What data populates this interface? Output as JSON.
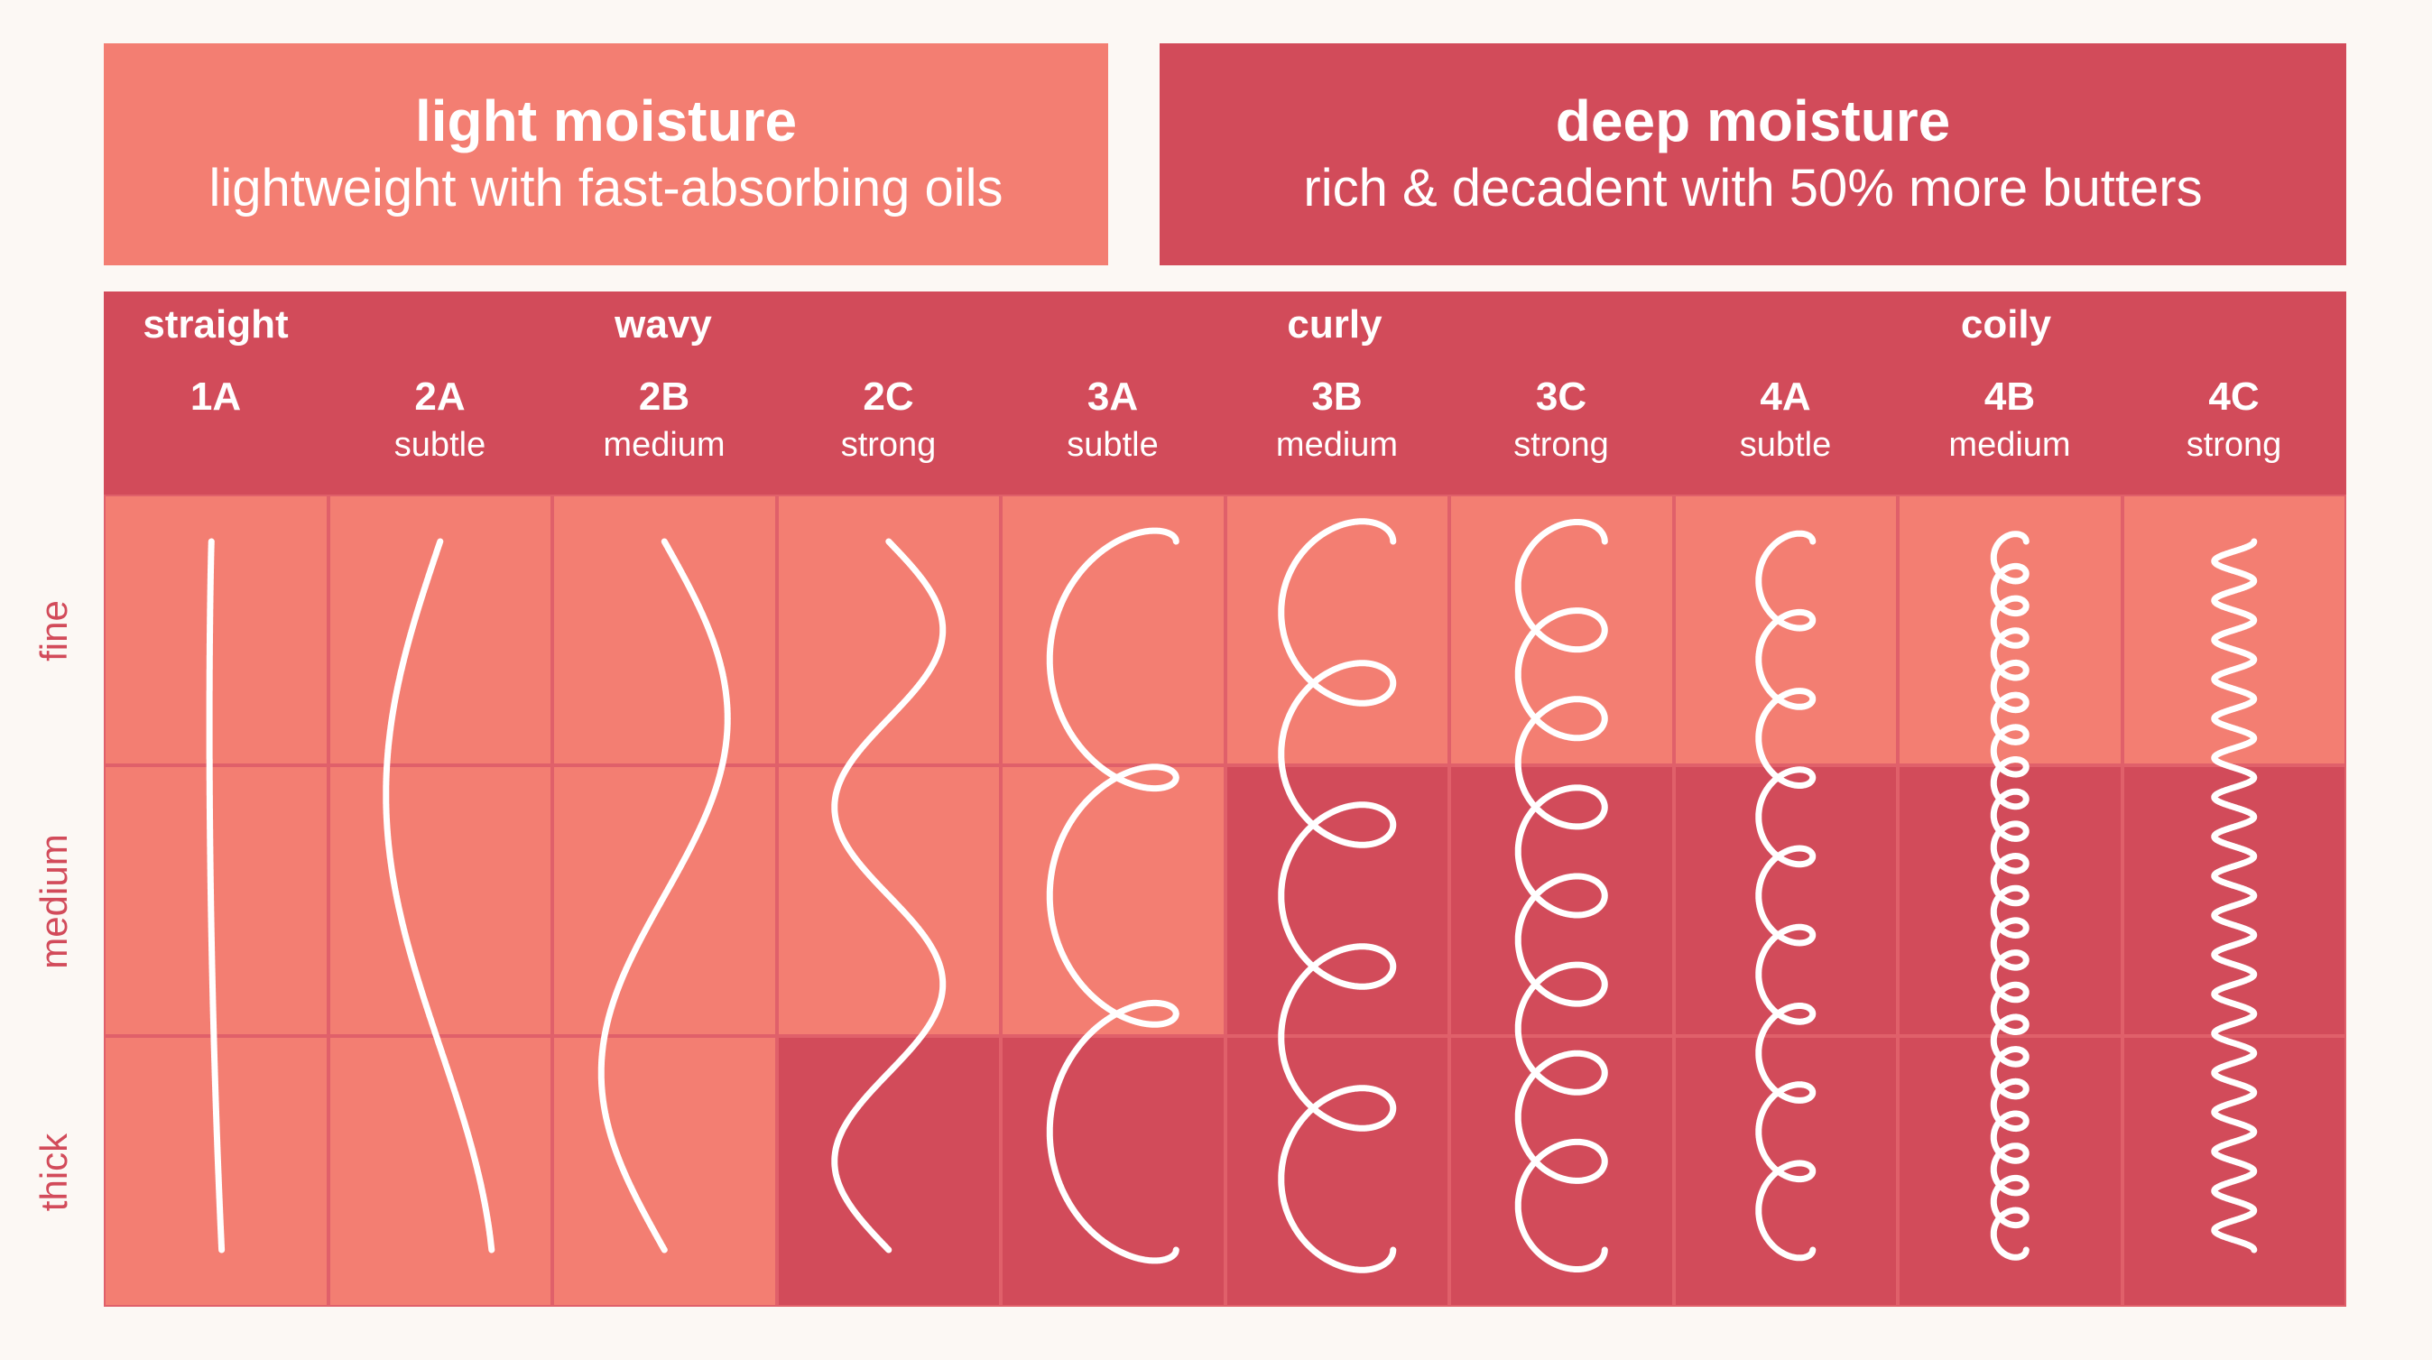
{
  "legend": {
    "light": {
      "title": "light moisture",
      "subtitle": "lightweight with fast-absorbing oils",
      "color": "#f37e72"
    },
    "deep": {
      "title": "deep moisture",
      "subtitle": "rich & decadent with 50% more butters",
      "color": "#d24b5a"
    }
  },
  "categories": [
    "straight",
    "wavy",
    "curly",
    "coily"
  ],
  "types": [
    {
      "code": "1A",
      "variant": ""
    },
    {
      "code": "2A",
      "variant": "subtle"
    },
    {
      "code": "2B",
      "variant": "medium"
    },
    {
      "code": "2C",
      "variant": "strong"
    },
    {
      "code": "3A",
      "variant": "subtle"
    },
    {
      "code": "3B",
      "variant": "medium"
    },
    {
      "code": "3C",
      "variant": "strong"
    },
    {
      "code": "4A",
      "variant": "subtle"
    },
    {
      "code": "4B",
      "variant": "medium"
    },
    {
      "code": "4C",
      "variant": "strong"
    }
  ],
  "rows": [
    "fine",
    "medium",
    "thick"
  ],
  "moisture_matrix": {
    "fine": [
      "light",
      "light",
      "light",
      "light",
      "light",
      "light",
      "light",
      "light",
      "light",
      "light"
    ],
    "medium": [
      "light",
      "light",
      "light",
      "light",
      "light",
      "deep",
      "deep",
      "deep",
      "deep",
      "deep"
    ],
    "thick": [
      "light",
      "light",
      "light",
      "deep",
      "deep",
      "deep",
      "deep",
      "deep",
      "deep",
      "deep"
    ]
  }
}
